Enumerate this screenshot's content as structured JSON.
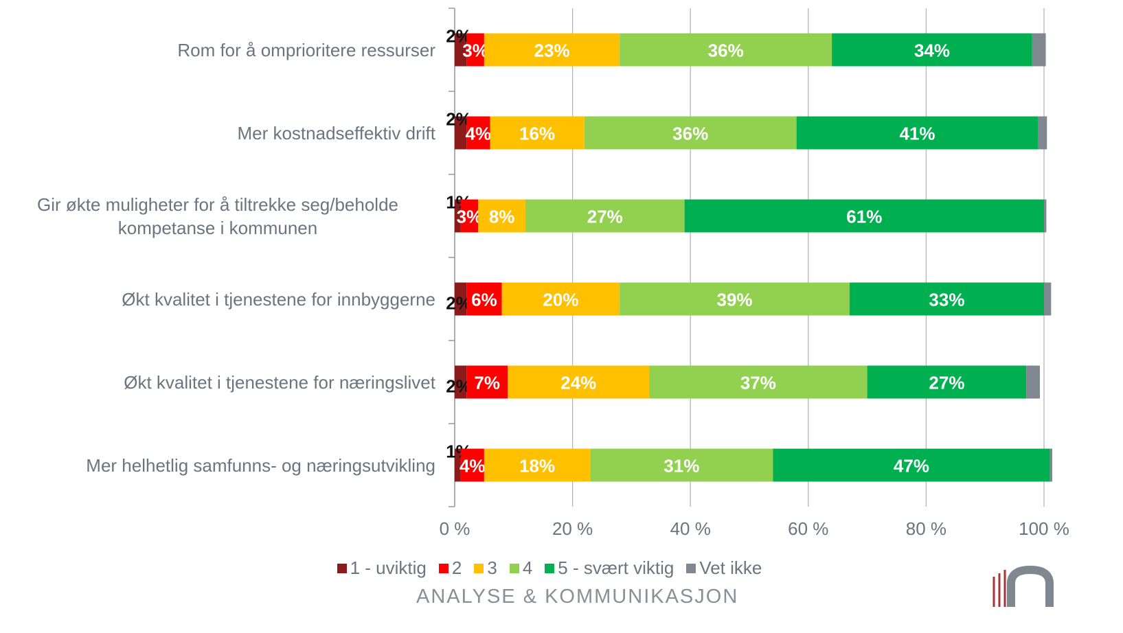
{
  "chart_data": {
    "type": "stacked-bar-horizontal",
    "categories": [
      "Rom for å omprioritere ressurser",
      "Mer kostnadseffektiv drift",
      "Gir økte muligheter for å tiltrekke seg/beholde kompetanse i kommunen",
      "Økt kvalitet i tjenestene for innbyggerne",
      "Økt kvalitet i tjenestene for næringslivet",
      "Mer helhetlig samfunns- og næringsutvikling"
    ],
    "series": [
      {
        "name": "1 - uviktig",
        "color": "#8b1a1a",
        "values": [
          2,
          2,
          1,
          2,
          2,
          1
        ],
        "value_labels": [
          "2%",
          "2%",
          "1%",
          "2%",
          "2%",
          "1%"
        ]
      },
      {
        "name": "2",
        "color": "#ff0000",
        "values": [
          3,
          4,
          3,
          6,
          7,
          4
        ],
        "value_labels": [
          "3%",
          "4%",
          "3%",
          "6%",
          "7%",
          "4%"
        ]
      },
      {
        "name": "3",
        "color": "#ffc000",
        "values": [
          23,
          16,
          8,
          20,
          24,
          18
        ],
        "value_labels": [
          "23%",
          "16%",
          "8%",
          "20%",
          "24%",
          "18%"
        ]
      },
      {
        "name": "4",
        "color": "#92d050",
        "values": [
          36,
          36,
          27,
          39,
          37,
          31
        ],
        "value_labels": [
          "36%",
          "36%",
          "27%",
          "39%",
          "37%",
          "31%"
        ]
      },
      {
        "name": "5 - svært viktig",
        "color": "#00b050",
        "values": [
          34,
          41,
          61,
          33,
          27,
          47
        ],
        "value_labels": [
          "34%",
          "41%",
          "61%",
          "33%",
          "27%",
          "47%"
        ]
      },
      {
        "name": "Vet ikke",
        "color": "#7f8790",
        "values": [
          2.3,
          1.5,
          0.4,
          1.2,
          2.3,
          0.4
        ]
      }
    ],
    "xlim": [
      0,
      100
    ],
    "xticks": [
      {
        "value": 0,
        "label": "0 %"
      },
      {
        "value": 20,
        "label": "20 %"
      },
      {
        "value": 40,
        "label": "40 %"
      },
      {
        "value": 60,
        "label": "60 %"
      },
      {
        "value": 80,
        "label": "80 %"
      },
      {
        "value": 100,
        "label": "100 %"
      }
    ],
    "grid": true,
    "footer": "ANALYSE & KOMMUNIKASJON"
  }
}
